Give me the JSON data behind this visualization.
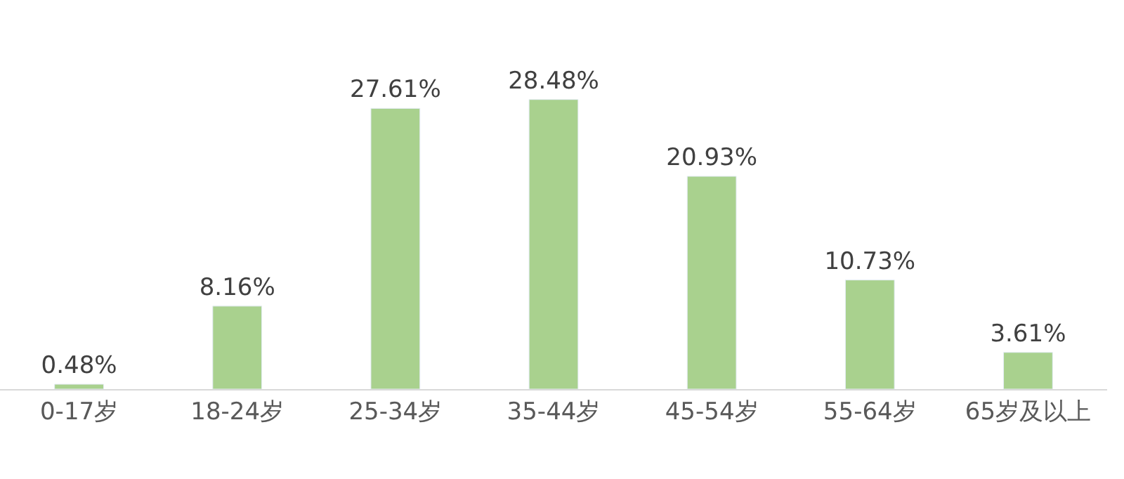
{
  "chart_data": {
    "type": "bar",
    "categories": [
      "0-17岁",
      "18-24岁",
      "25-34岁",
      "35-44岁",
      "45-54岁",
      "55-64岁",
      "65岁及以上"
    ],
    "values": [
      0.48,
      8.16,
      27.61,
      28.48,
      20.93,
      10.73,
      3.61
    ],
    "value_labels": [
      "0.48%",
      "8.16%",
      "27.61%",
      "28.48%",
      "20.93%",
      "10.73%",
      "3.61%"
    ],
    "color": "#a9d18e",
    "legend": false
  }
}
